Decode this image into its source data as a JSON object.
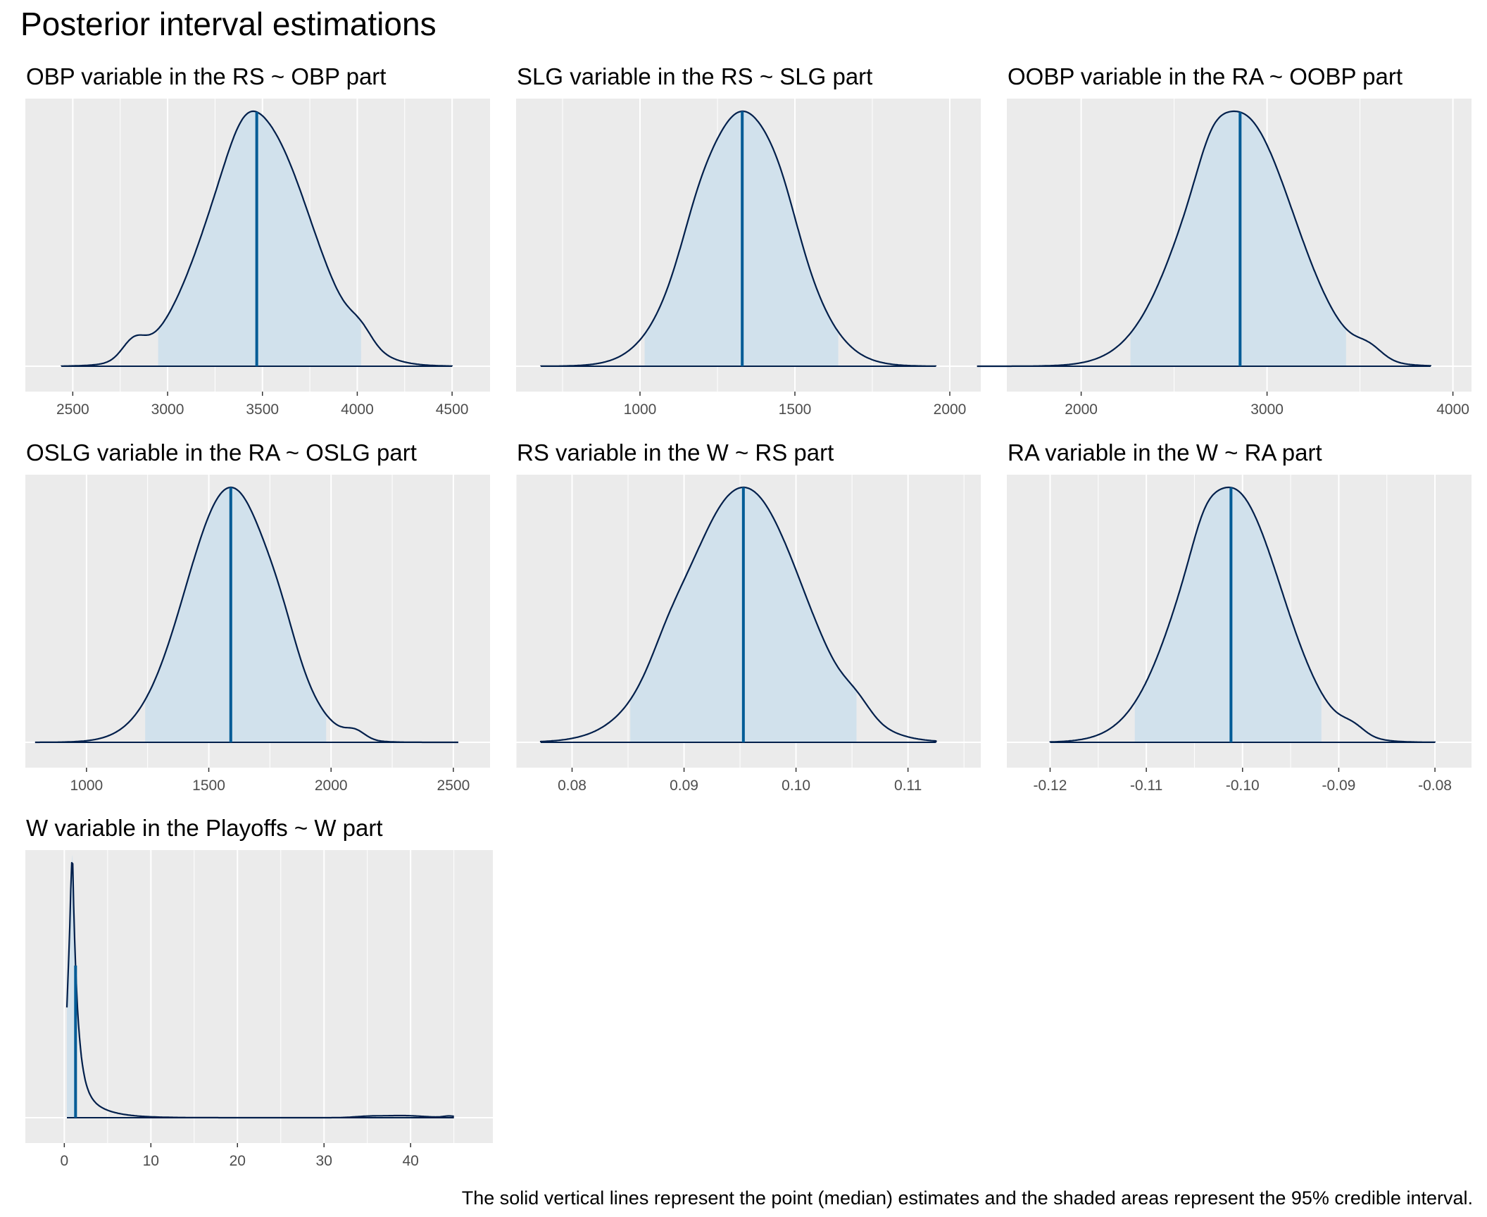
{
  "title": "Posterior interval estimations",
  "caption": "The solid vertical lines represent the point (median) estimates and the shaded areas represent the 95% credible interval.",
  "colors": {
    "panel_bg": "#ebebeb",
    "grid": "#ffffff",
    "fill": "#d1e1ec",
    "outline": "#011f4b",
    "median": "#005b96"
  },
  "chart_data": [
    {
      "type": "area",
      "title": "OBP variable in the RS ~ OBP part",
      "xlim": [
        2250,
        4700
      ],
      "xticks": [
        2500,
        3000,
        3500,
        4000,
        4500
      ],
      "xtick_labels": [
        "2500",
        "3000",
        "3500",
        "4000",
        "4500"
      ],
      "median": 3470,
      "ci": [
        2950,
        4020
      ],
      "range": [
        2440,
        4500
      ],
      "shape": "normal",
      "mean": 3480,
      "sd": 270,
      "bumps": [
        [
          2820,
          60,
          0.07
        ],
        [
          4020,
          60,
          0.05
        ],
        [
          3400,
          80,
          0.06
        ]
      ]
    },
    {
      "type": "area",
      "title": "SLG variable in the RS ~ SLG part",
      "xlim": [
        600,
        2100
      ],
      "xticks": [
        1000,
        1500,
        2000
      ],
      "xtick_labels": [
        "1000",
        "1500",
        "2000"
      ],
      "median": 1330,
      "ci": [
        1015,
        1640
      ],
      "range": [
        680,
        1955
      ],
      "shape": "normal",
      "mean": 1330,
      "sd": 155,
      "bumps": [
        [
          1180,
          50,
          0.05
        ],
        [
          1460,
          50,
          0.05
        ]
      ]
    },
    {
      "type": "area",
      "title": "OOBP variable in the RA ~ OOBP part",
      "xlim": [
        1600,
        4100
      ],
      "xticks": [
        2000,
        3000,
        4000
      ],
      "xtick_labels": [
        "2000",
        "3000",
        "4000"
      ],
      "median": 2855,
      "ci": [
        2265,
        3425
      ],
      "range": [
        1440,
        3880
      ],
      "shape": "normal",
      "mean": 2850,
      "sd": 290,
      "bumps": [
        [
          2700,
          70,
          0.06
        ],
        [
          3550,
          70,
          0.04
        ]
      ]
    },
    {
      "type": "area",
      "title": "OSLG variable in the RA ~ OSLG part",
      "xlim": [
        750,
        2650
      ],
      "xticks": [
        1000,
        1500,
        2000,
        2500
      ],
      "xtick_labels": [
        "1000",
        "1500",
        "2000",
        "2500"
      ],
      "median": 1590,
      "ci": [
        1240,
        1980
      ],
      "range": [
        790,
        2520
      ],
      "shape": "normal",
      "mean": 1590,
      "sd": 185,
      "bumps": [
        [
          1800,
          60,
          0.05
        ],
        [
          2100,
          40,
          0.03
        ]
      ]
    },
    {
      "type": "area",
      "title": "RS variable in the W ~ RS part",
      "xlim": [
        0.075,
        0.1165
      ],
      "xticks": [
        0.08,
        0.09,
        0.1,
        0.11
      ],
      "xtick_labels": [
        "0.08",
        "0.09",
        "0.10",
        "0.11"
      ],
      "median": 0.0953,
      "ci": [
        0.0852,
        0.1054
      ],
      "range": [
        0.0772,
        0.1125
      ],
      "shape": "normal",
      "mean": 0.0953,
      "sd": 0.0053,
      "bumps": [
        [
          0.0885,
          0.0015,
          0.05
        ],
        [
          0.1055,
          0.0012,
          0.04
        ]
      ]
    },
    {
      "type": "area",
      "title": "RA variable in the W ~ RA part",
      "xlim": [
        -0.1245,
        -0.0762
      ],
      "xticks": [
        -0.12,
        -0.11,
        -0.1,
        -0.09,
        -0.08
      ],
      "xtick_labels": [
        "-0.12",
        "-0.11",
        "-0.10",
        "-0.09",
        "-0.08"
      ],
      "median": -0.1012,
      "ci": [
        -0.1112,
        -0.0918
      ],
      "range": [
        -0.12,
        -0.08
      ],
      "shape": "normal",
      "mean": -0.1012,
      "sd": 0.0052,
      "bumps": [
        [
          -0.104,
          0.0012,
          0.05
        ],
        [
          -0.0885,
          0.0012,
          0.03
        ]
      ]
    },
    {
      "type": "area",
      "title": "W variable in the Playoffs ~ W part",
      "xlim": [
        -4.5,
        49.5
      ],
      "xticks": [
        0,
        10,
        20,
        30,
        40
      ],
      "xtick_labels": [
        "0",
        "10",
        "20",
        "30",
        "40"
      ],
      "median": 1.3,
      "ci": [
        0.3,
        1.3
      ],
      "range": [
        0.3,
        45
      ],
      "shape": "skewed"
    }
  ]
}
